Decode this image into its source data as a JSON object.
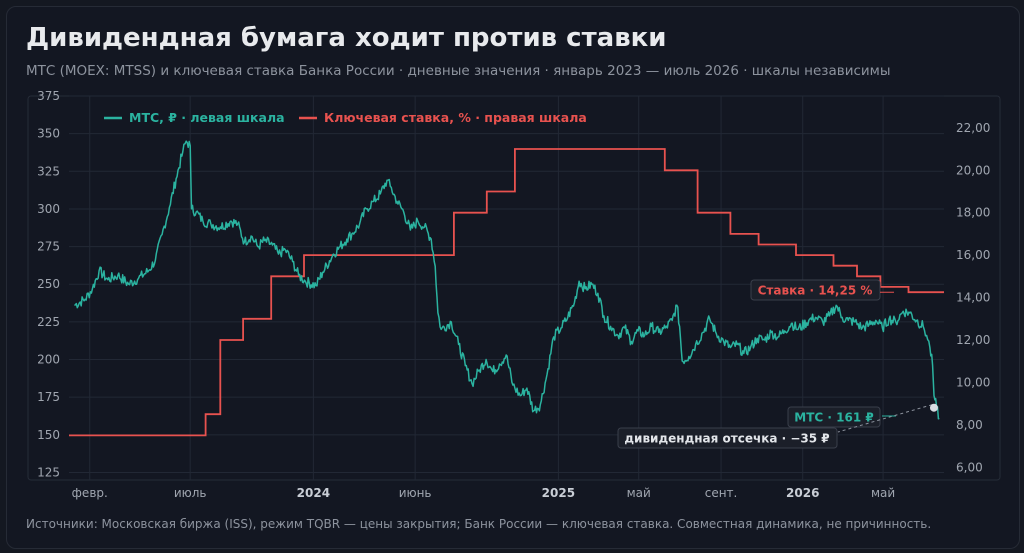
{
  "title": "Дивидендная бумага ходит против ставки",
  "subtitle": "МТС (MOEX: MTSS) и ключевая ставка Банка России · дневные значения · январь 2023 — июль 2026 · шкалы независимы",
  "source": "Источники: Московская биржа (ISS), режим TQBR — цены закрытия; Банк России — ключевая ставка. Совместная динамика, не причинность.",
  "colors": {
    "mts": "#2bb3a0",
    "rate": "#e8524f",
    "background": "#131722",
    "grid": "#222835",
    "text": "#a0a6b0"
  },
  "chart_data": {
    "type": "line",
    "x_range": [
      "2023-01-01",
      "2026-07-31"
    ],
    "x_ticks": [
      {
        "date": "2023-02-01",
        "label": "февр.",
        "bold": false
      },
      {
        "date": "2023-07-01",
        "label": "июль",
        "bold": false
      },
      {
        "date": "2024-01-01",
        "label": "2024",
        "bold": true
      },
      {
        "date": "2024-06-01",
        "label": "июнь",
        "bold": false
      },
      {
        "date": "2025-01-01",
        "label": "2025",
        "bold": true
      },
      {
        "date": "2025-05-01",
        "label": "май",
        "bold": false
      },
      {
        "date": "2025-09-01",
        "label": "сент.",
        "bold": false
      },
      {
        "date": "2026-01-01",
        "label": "2026",
        "bold": true
      },
      {
        "date": "2026-05-01",
        "label": "май",
        "bold": false
      }
    ],
    "y_left": {
      "min": 120,
      "max": 375,
      "ticks": [
        125,
        150,
        175,
        200,
        225,
        250,
        275,
        300,
        325,
        350,
        375
      ],
      "unit": "₽"
    },
    "y_right": {
      "min": 5.4,
      "max": 23.5,
      "ticks": [
        "6,00",
        "8,00",
        "10,00",
        "12,00",
        "14,00",
        "16,00",
        "18,00",
        "20,00",
        "22,00"
      ]
    },
    "legend": [
      {
        "key": "mts",
        "label": "МТС, ₽ · левая шкала",
        "color": "#2bb3a0"
      },
      {
        "key": "rate",
        "label": "Ключевая ставка, % · правая шкала",
        "color": "#e8524f"
      }
    ],
    "series": [
      {
        "key": "mts",
        "axis": "left",
        "points": [
          [
            "2023-01-09",
            236
          ],
          [
            "2023-01-25",
            240
          ],
          [
            "2023-02-05",
            247
          ],
          [
            "2023-02-15",
            259
          ],
          [
            "2023-02-28",
            253
          ],
          [
            "2023-03-15",
            256
          ],
          [
            "2023-03-31",
            250
          ],
          [
            "2023-04-15",
            254
          ],
          [
            "2023-04-30",
            259
          ],
          [
            "2023-05-10",
            266
          ],
          [
            "2023-05-20",
            283
          ],
          [
            "2023-05-31",
            301
          ],
          [
            "2023-06-10",
            320
          ],
          [
            "2023-06-20",
            338
          ],
          [
            "2023-06-25",
            345
          ],
          [
            "2023-07-01",
            342
          ],
          [
            "2023-07-03",
            300
          ],
          [
            "2023-07-10",
            298
          ],
          [
            "2023-07-20",
            292
          ],
          [
            "2023-08-01",
            290
          ],
          [
            "2023-08-15",
            288
          ],
          [
            "2023-08-31",
            292
          ],
          [
            "2023-09-10",
            290
          ],
          [
            "2023-09-20",
            278
          ],
          [
            "2023-09-30",
            282
          ],
          [
            "2023-10-10",
            275
          ],
          [
            "2023-10-20",
            279
          ],
          [
            "2023-11-01",
            276
          ],
          [
            "2023-11-10",
            270
          ],
          [
            "2023-11-20",
            273
          ],
          [
            "2023-12-01",
            265
          ],
          [
            "2023-12-10",
            256
          ],
          [
            "2023-12-20",
            252
          ],
          [
            "2024-01-05",
            249
          ],
          [
            "2024-01-15",
            258
          ],
          [
            "2024-01-31",
            270
          ],
          [
            "2024-02-10",
            275
          ],
          [
            "2024-02-20",
            280
          ],
          [
            "2024-02-29",
            284
          ],
          [
            "2024-03-10",
            290
          ],
          [
            "2024-03-20",
            300
          ],
          [
            "2024-03-31",
            305
          ],
          [
            "2024-04-10",
            310
          ],
          [
            "2024-04-20",
            319
          ],
          [
            "2024-04-25",
            315
          ],
          [
            "2024-05-05",
            305
          ],
          [
            "2024-05-15",
            298
          ],
          [
            "2024-05-25",
            286
          ],
          [
            "2024-06-05",
            292
          ],
          [
            "2024-06-15",
            288
          ],
          [
            "2024-06-25",
            280
          ],
          [
            "2024-07-01",
            262
          ],
          [
            "2024-07-05",
            231
          ],
          [
            "2024-07-10",
            220
          ],
          [
            "2024-07-25",
            225
          ],
          [
            "2024-08-05",
            210
          ],
          [
            "2024-08-15",
            196
          ],
          [
            "2024-08-25",
            184
          ],
          [
            "2024-09-05",
            193
          ],
          [
            "2024-09-15",
            200
          ],
          [
            "2024-09-25",
            192
          ],
          [
            "2024-10-05",
            197
          ],
          [
            "2024-10-15",
            203
          ],
          [
            "2024-10-25",
            183
          ],
          [
            "2024-11-05",
            176
          ],
          [
            "2024-11-15",
            181
          ],
          [
            "2024-11-25",
            166
          ],
          [
            "2024-12-05",
            170
          ],
          [
            "2024-12-15",
            190
          ],
          [
            "2024-12-25",
            215
          ],
          [
            "2025-01-05",
            221
          ],
          [
            "2025-01-15",
            228
          ],
          [
            "2025-01-25",
            238
          ],
          [
            "2025-02-01",
            252
          ],
          [
            "2025-02-10",
            247
          ],
          [
            "2025-02-20",
            250
          ],
          [
            "2025-03-01",
            244
          ],
          [
            "2025-03-10",
            229
          ],
          [
            "2025-03-20",
            222
          ],
          [
            "2025-03-31",
            216
          ],
          [
            "2025-04-10",
            221
          ],
          [
            "2025-04-20",
            212
          ],
          [
            "2025-04-30",
            219
          ],
          [
            "2025-05-10",
            216
          ],
          [
            "2025-05-20",
            222
          ],
          [
            "2025-05-31",
            218
          ],
          [
            "2025-06-10",
            221
          ],
          [
            "2025-06-20",
            226
          ],
          [
            "2025-06-27",
            236
          ],
          [
            "2025-07-01",
            222
          ],
          [
            "2025-07-05",
            199
          ],
          [
            "2025-07-15",
            202
          ],
          [
            "2025-07-25",
            210
          ],
          [
            "2025-08-05",
            218
          ],
          [
            "2025-08-15",
            227
          ],
          [
            "2025-08-25",
            217
          ],
          [
            "2025-09-05",
            212
          ],
          [
            "2025-09-15",
            208
          ],
          [
            "2025-09-25",
            210
          ],
          [
            "2025-10-05",
            204
          ],
          [
            "2025-10-15",
            208
          ],
          [
            "2025-10-25",
            214
          ],
          [
            "2025-11-05",
            213
          ],
          [
            "2025-11-15",
            218
          ],
          [
            "2025-11-25",
            215
          ],
          [
            "2025-12-05",
            219
          ],
          [
            "2025-12-15",
            224
          ],
          [
            "2025-12-25",
            220
          ],
          [
            "2026-01-10",
            226
          ],
          [
            "2026-01-20",
            228
          ],
          [
            "2026-01-31",
            225
          ],
          [
            "2026-02-10",
            229
          ],
          [
            "2026-02-20",
            236
          ],
          [
            "2026-03-01",
            228
          ],
          [
            "2026-03-10",
            226
          ],
          [
            "2026-03-20",
            225
          ],
          [
            "2026-03-31",
            221
          ],
          [
            "2026-04-10",
            223
          ],
          [
            "2026-04-20",
            226
          ],
          [
            "2026-04-30",
            221
          ],
          [
            "2026-05-10",
            227
          ],
          [
            "2026-05-20",
            225
          ],
          [
            "2026-05-31",
            232
          ],
          [
            "2026-06-10",
            231
          ],
          [
            "2026-06-20",
            226
          ],
          [
            "2026-06-30",
            222
          ],
          [
            "2026-07-05",
            216
          ],
          [
            "2026-07-10",
            208
          ],
          [
            "2026-07-14",
            196
          ],
          [
            "2026-07-16",
            176
          ],
          [
            "2026-07-20",
            168
          ],
          [
            "2026-07-24",
            161
          ]
        ]
      },
      {
        "key": "rate",
        "axis": "right",
        "step": true,
        "points": [
          [
            "2023-01-01",
            7.5
          ],
          [
            "2023-07-24",
            8.5
          ],
          [
            "2023-08-15",
            12.0
          ],
          [
            "2023-09-18",
            13.0
          ],
          [
            "2023-10-30",
            15.0
          ],
          [
            "2023-12-18",
            16.0
          ],
          [
            "2024-07-29",
            18.0
          ],
          [
            "2024-09-16",
            19.0
          ],
          [
            "2024-10-28",
            21.0
          ],
          [
            "2025-06-09",
            20.0
          ],
          [
            "2025-07-28",
            18.0
          ],
          [
            "2025-09-15",
            17.0
          ],
          [
            "2025-10-27",
            16.5
          ],
          [
            "2025-12-22",
            16.0
          ],
          [
            "2026-02-16",
            15.5
          ],
          [
            "2026-03-23",
            15.0
          ],
          [
            "2026-04-27",
            14.5
          ],
          [
            "2026-06-08",
            14.25
          ],
          [
            "2026-07-31",
            14.25
          ]
        ]
      }
    ],
    "annotations": {
      "rate_label": "Ставка · 14,25 %",
      "mts_label": "МТС · 161 ₽",
      "dividend_label": "дивидендная отсечка · −35 ₽",
      "dividend_date": "2026-07-16",
      "dividend_price": 168
    }
  }
}
